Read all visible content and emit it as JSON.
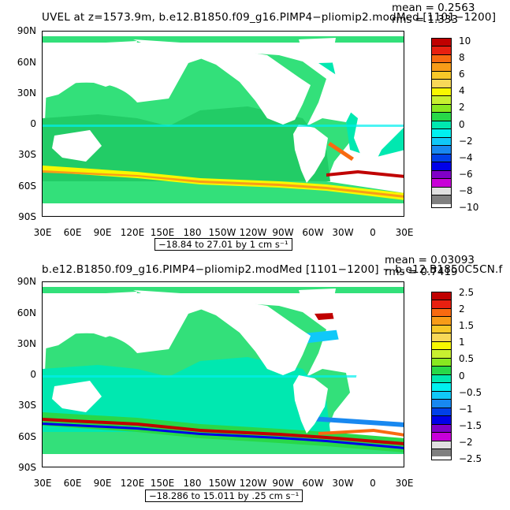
{
  "panels": [
    {
      "title": "UVEL at z=1573.9m, b.e12.B1850.f09_g16.PIMP4−pliomip2.modMed [1101−1200]",
      "mean": "mean = 0.2563",
      "rms": "rms = 1.333",
      "range": "−18.84 to 27.01 by 1 cm s⁻¹",
      "colorbar_labels": [
        "10",
        "8",
        "6",
        "4",
        "2",
        "0",
        "−2",
        "−4",
        "−6",
        "−8",
        "−10"
      ]
    },
    {
      "title": "b.e12.B1850.f09_g16.PIMP4−pliomip2.modMed [1101−1200] − b.e12.B1850C5CN.f",
      "mean": "mean = 0.03093",
      "rms": "rms = 0.7419",
      "range": "−18.286 to 15.011 by .25 cm s⁻¹",
      "colorbar_labels": [
        "2.5",
        "2",
        "1.5",
        "1",
        "0.5",
        "0",
        "−0.5",
        "−1",
        "−1.5",
        "−2",
        "−2.5"
      ]
    }
  ],
  "axes": {
    "lat_labels": [
      "90N",
      "60N",
      "30N",
      "0",
      "30S",
      "60S",
      "90S"
    ],
    "lon_labels": [
      "30E",
      "60E",
      "90E",
      "120E",
      "150E",
      "180",
      "150W",
      "120W",
      "90W",
      "60W",
      "30W",
      "0",
      "30E"
    ]
  },
  "colorbar_colors": [
    "#c00000",
    "#e82010",
    "#f86a10",
    "#f89c18",
    "#f8c828",
    "#f8f800",
    "#88e820",
    "#28d848",
    "#00e8b0",
    "#00f0f0",
    "#10c8f8",
    "#1888f0",
    "#0000e8",
    "#8000c8",
    "#c800d8",
    "#e0e0e0",
    "#808080"
  ],
  "land_color": "#ffffff",
  "ocean_color": "#33e07a"
}
